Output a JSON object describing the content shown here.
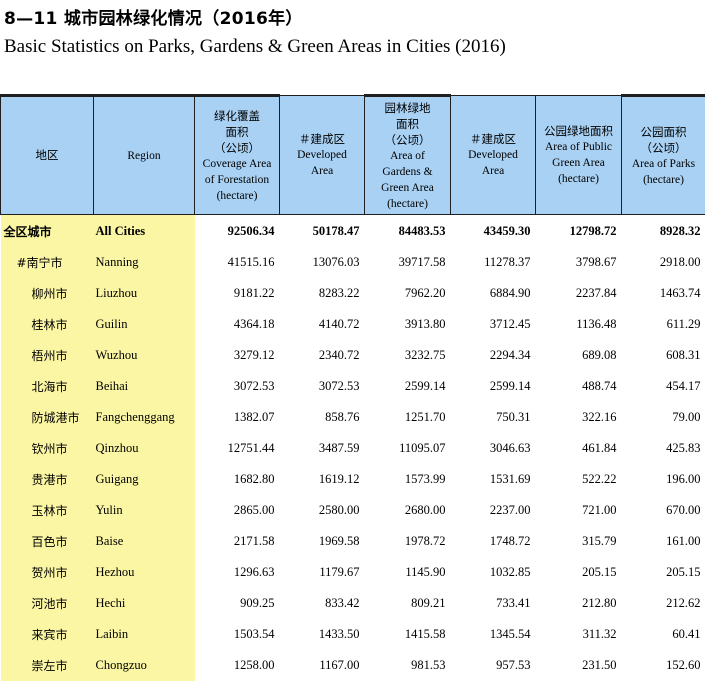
{
  "title_cn": "8—11  城市园林绿化情况（2016年）",
  "title_en": "Basic Statistics on Parks, Gardens & Green Areas in Cities (2016)",
  "headers": {
    "region_cn": "地区",
    "region_en": "Region",
    "forestation": [
      "绿化覆盖",
      "面积",
      "（公顷）",
      "Coverage Area",
      "of Forestation",
      "(hectare)"
    ],
    "forestation_developed": [
      "＃建成区",
      "Developed",
      "Area"
    ],
    "gardens": [
      "园林绿地",
      "面积",
      "（公顷）",
      "Area of",
      "Gardens &",
      "Green Area",
      "(hectare)"
    ],
    "gardens_developed": [
      "＃建成区",
      "Developed",
      "Area"
    ],
    "public_green": [
      "公园绿地面积",
      "Area of Public",
      "Green Area",
      "(hectare)"
    ],
    "parks": [
      "公园面积",
      "（公顷）",
      "Area of Parks",
      "(hectare)"
    ]
  },
  "rows": [
    {
      "cn": "全区城市",
      "en": "All Cities",
      "v": [
        "92506.34",
        "50178.47",
        "84483.53",
        "43459.30",
        "12798.72",
        "8928.32"
      ]
    },
    {
      "cn": "#南宁市",
      "en": "Nanning",
      "v": [
        "41515.16",
        "13076.03",
        "39717.58",
        "11278.37",
        "3798.67",
        "2918.00"
      ]
    },
    {
      "cn": "柳州市",
      "en": "Liuzhou",
      "v": [
        "9181.22",
        "8283.22",
        "7962.20",
        "6884.90",
        "2237.84",
        "1463.74"
      ]
    },
    {
      "cn": "桂林市",
      "en": "Guilin",
      "v": [
        "4364.18",
        "4140.72",
        "3913.80",
        "3712.45",
        "1136.48",
        "611.29"
      ]
    },
    {
      "cn": "梧州市",
      "en": "Wuzhou",
      "v": [
        "3279.12",
        "2340.72",
        "3232.75",
        "2294.34",
        "689.08",
        "608.31"
      ]
    },
    {
      "cn": "北海市",
      "en": "Beihai",
      "v": [
        "3072.53",
        "3072.53",
        "2599.14",
        "2599.14",
        "488.74",
        "454.17"
      ]
    },
    {
      "cn": "防城港市",
      "en": "Fangchenggang",
      "v": [
        "1382.07",
        "858.76",
        "1251.70",
        "750.31",
        "322.16",
        "79.00"
      ]
    },
    {
      "cn": "钦州市",
      "en": "Qinzhou",
      "v": [
        "12751.44",
        "3487.59",
        "11095.07",
        "3046.63",
        "461.84",
        "425.83"
      ]
    },
    {
      "cn": "贵港市",
      "en": "Guigang",
      "v": [
        "1682.80",
        "1619.12",
        "1573.99",
        "1531.69",
        "522.22",
        "196.00"
      ]
    },
    {
      "cn": "玉林市",
      "en": "Yulin",
      "v": [
        "2865.00",
        "2580.00",
        "2680.00",
        "2237.00",
        "721.00",
        "670.00"
      ]
    },
    {
      "cn": "百色市",
      "en": "Baise",
      "v": [
        "2171.58",
        "1969.58",
        "1978.72",
        "1748.72",
        "315.79",
        "161.00"
      ]
    },
    {
      "cn": "贺州市",
      "en": "Hezhou",
      "v": [
        "1296.63",
        "1179.67",
        "1145.90",
        "1032.85",
        "205.15",
        "205.15"
      ]
    },
    {
      "cn": "河池市",
      "en": "Hechi",
      "v": [
        "909.25",
        "833.42",
        "809.21",
        "733.41",
        "212.80",
        "212.62"
      ]
    },
    {
      "cn": "来宾市",
      "en": "Laibin",
      "v": [
        "1503.54",
        "1433.50",
        "1415.58",
        "1345.54",
        "311.32",
        "60.41"
      ]
    },
    {
      "cn": "崇左市",
      "en": "Chongzuo",
      "v": [
        "1258.00",
        "1167.00",
        "981.53",
        "957.53",
        "231.50",
        "152.60"
      ]
    }
  ],
  "colors": {
    "header_bg": "#a9d1f3",
    "region_bg": "#fbf6a3",
    "border": "#1f1f1f"
  }
}
